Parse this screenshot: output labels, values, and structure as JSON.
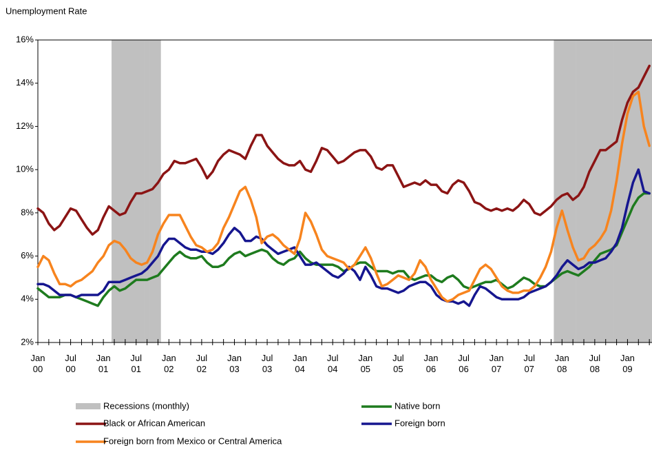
{
  "chart_data": {
    "type": "line",
    "title": "Unemployment Rate",
    "categories": [
      "Jan 00",
      null,
      null,
      null,
      null,
      null,
      "Jul 00",
      null,
      null,
      null,
      null,
      null,
      "Jan 01",
      null,
      null,
      null,
      null,
      null,
      "Jul 01",
      null,
      null,
      null,
      null,
      null,
      "Jan 02",
      null,
      null,
      null,
      null,
      null,
      "Jul 02",
      null,
      null,
      null,
      null,
      null,
      "Jan 03",
      null,
      null,
      null,
      null,
      null,
      "Jul 03",
      null,
      null,
      null,
      null,
      null,
      "Jan 04",
      null,
      null,
      null,
      null,
      null,
      "Jul 04",
      null,
      null,
      null,
      null,
      null,
      "Jan 05",
      null,
      null,
      null,
      null,
      null,
      "Jul 05",
      null,
      null,
      null,
      null,
      null,
      "Jan 06",
      null,
      null,
      null,
      null,
      null,
      "Jul 06",
      null,
      null,
      null,
      null,
      null,
      "Jan 07",
      null,
      null,
      null,
      null,
      null,
      "Jul 07",
      null,
      null,
      null,
      null,
      null,
      "Jan 08",
      null,
      null,
      null,
      null,
      null,
      "Jul 08",
      null,
      null,
      null,
      null,
      null,
      "Jan 09",
      null,
      null,
      null,
      null
    ],
    "recessions": {
      "name": "Recessions (monthly)",
      "color": "#c0c0c0",
      "values": [
        0,
        0,
        0,
        0,
        0,
        0,
        0,
        0,
        0,
        0,
        0,
        0,
        0,
        0,
        1,
        1,
        1,
        1,
        1,
        1,
        1,
        1,
        1,
        0,
        0,
        0,
        0,
        0,
        0,
        0,
        0,
        0,
        0,
        0,
        0,
        0,
        0,
        0,
        0,
        0,
        0,
        0,
        0,
        0,
        0,
        0,
        0,
        0,
        0,
        0,
        0,
        0,
        0,
        0,
        0,
        0,
        0,
        0,
        0,
        0,
        0,
        0,
        0,
        0,
        0,
        0,
        0,
        0,
        0,
        0,
        0,
        0,
        0,
        0,
        0,
        0,
        0,
        0,
        0,
        0,
        0,
        0,
        0,
        0,
        0,
        0,
        0,
        0,
        0,
        0,
        0,
        0,
        0,
        0,
        0,
        1,
        1,
        1,
        1,
        1,
        1,
        1,
        1,
        1,
        1,
        1,
        1,
        1,
        1,
        1,
        1,
        1,
        1
      ]
    },
    "series": [
      {
        "name": "Native born",
        "color": "#1e7b1e",
        "values": [
          4.5,
          4.3,
          4.1,
          4.1,
          4.1,
          4.2,
          4.2,
          4.1,
          4.0,
          3.9,
          3.8,
          3.7,
          4.1,
          4.4,
          4.6,
          4.4,
          4.5,
          4.7,
          4.9,
          4.9,
          4.9,
          5.0,
          5.1,
          5.4,
          5.7,
          6.0,
          6.2,
          6.0,
          5.9,
          5.9,
          6.0,
          5.7,
          5.5,
          5.5,
          5.6,
          5.9,
          6.1,
          6.2,
          6.0,
          6.1,
          6.2,
          6.3,
          6.2,
          5.9,
          5.7,
          5.6,
          5.8,
          5.9,
          6.2,
          5.9,
          5.7,
          5.6,
          5.6,
          5.6,
          5.6,
          5.5,
          5.3,
          5.4,
          5.6,
          5.7,
          5.7,
          5.5,
          5.3,
          5.3,
          5.3,
          5.2,
          5.3,
          5.3,
          5.0,
          4.9,
          5.0,
          5.1,
          5.1,
          4.9,
          4.8,
          5.0,
          5.1,
          4.9,
          4.6,
          4.5,
          4.6,
          4.7,
          4.8,
          4.8,
          4.9,
          4.7,
          4.5,
          4.6,
          4.8,
          5.0,
          4.9,
          4.7,
          4.6,
          4.6,
          4.8,
          5.0,
          5.2,
          5.3,
          5.2,
          5.1,
          5.3,
          5.5,
          5.8,
          6.1,
          6.2,
          6.3,
          6.5,
          7.1,
          7.7,
          8.3,
          8.7,
          8.9,
          8.9
        ]
      },
      {
        "name": "Black or African American",
        "color": "#8b1414",
        "values": [
          8.2,
          8.0,
          7.5,
          7.2,
          7.4,
          7.8,
          8.2,
          8.1,
          7.7,
          7.3,
          7.0,
          7.2,
          7.8,
          8.3,
          8.1,
          7.9,
          8.0,
          8.5,
          8.9,
          8.9,
          9.0,
          9.1,
          9.4,
          9.8,
          10.0,
          10.4,
          10.3,
          10.3,
          10.4,
          10.5,
          10.1,
          9.6,
          9.9,
          10.4,
          10.7,
          10.9,
          10.8,
          10.7,
          10.5,
          11.1,
          11.6,
          11.6,
          11.1,
          10.8,
          10.5,
          10.3,
          10.2,
          10.2,
          10.4,
          10.0,
          9.9,
          10.4,
          11.0,
          10.9,
          10.6,
          10.3,
          10.4,
          10.6,
          10.8,
          10.9,
          10.9,
          10.6,
          10.1,
          10.0,
          10.2,
          10.2,
          9.7,
          9.2,
          9.3,
          9.4,
          9.3,
          9.5,
          9.3,
          9.3,
          9.0,
          8.9,
          9.3,
          9.5,
          9.4,
          9.0,
          8.5,
          8.4,
          8.2,
          8.1,
          8.2,
          8.1,
          8.2,
          8.1,
          8.3,
          8.6,
          8.4,
          8.0,
          7.9,
          8.1,
          8.3,
          8.6,
          8.8,
          8.9,
          8.6,
          8.8,
          9.2,
          9.9,
          10.4,
          10.9,
          10.9,
          11.1,
          11.3,
          12.3,
          13.1,
          13.6,
          13.8,
          14.3,
          14.8
        ]
      },
      {
        "name": "Foreign born",
        "color": "#16168f",
        "values": [
          4.7,
          4.7,
          4.6,
          4.4,
          4.2,
          4.2,
          4.2,
          4.1,
          4.2,
          4.2,
          4.2,
          4.2,
          4.4,
          4.8,
          4.8,
          4.8,
          4.9,
          5.0,
          5.1,
          5.2,
          5.4,
          5.7,
          6.0,
          6.5,
          6.8,
          6.8,
          6.6,
          6.4,
          6.3,
          6.3,
          6.2,
          6.2,
          6.1,
          6.3,
          6.6,
          7.0,
          7.3,
          7.1,
          6.7,
          6.7,
          6.9,
          6.8,
          6.5,
          6.3,
          6.1,
          6.2,
          6.3,
          6.4,
          6.0,
          5.6,
          5.6,
          5.7,
          5.5,
          5.3,
          5.1,
          5.0,
          5.2,
          5.5,
          5.3,
          4.9,
          5.5,
          5.1,
          4.6,
          4.5,
          4.5,
          4.4,
          4.3,
          4.4,
          4.6,
          4.7,
          4.8,
          4.8,
          4.6,
          4.2,
          4.0,
          3.9,
          3.9,
          3.8,
          3.9,
          3.7,
          4.2,
          4.6,
          4.5,
          4.3,
          4.1,
          4.0,
          4.0,
          4.0,
          4.0,
          4.1,
          4.3,
          4.4,
          4.5,
          4.6,
          4.8,
          5.1,
          5.5,
          5.8,
          5.6,
          5.4,
          5.5,
          5.7,
          5.7,
          5.8,
          5.9,
          6.2,
          6.6,
          7.3,
          8.4,
          9.4,
          10.0,
          9.0,
          8.9
        ]
      },
      {
        "name": "Foreign born from Mexico or Central America",
        "color": "#f7841e",
        "values": [
          5.5,
          6.0,
          5.8,
          5.2,
          4.7,
          4.7,
          4.6,
          4.8,
          4.9,
          5.1,
          5.3,
          5.7,
          6.0,
          6.5,
          6.7,
          6.6,
          6.3,
          5.9,
          5.7,
          5.6,
          5.7,
          6.2,
          7.0,
          7.5,
          7.9,
          7.9,
          7.9,
          7.4,
          6.9,
          6.5,
          6.4,
          6.2,
          6.3,
          6.6,
          7.3,
          7.8,
          8.4,
          9.0,
          9.2,
          8.6,
          7.8,
          6.6,
          6.9,
          7.0,
          6.8,
          6.5,
          6.3,
          6.1,
          6.8,
          8.0,
          7.6,
          7.0,
          6.3,
          6.0,
          5.9,
          5.8,
          5.7,
          5.4,
          5.6,
          6.0,
          6.4,
          5.9,
          5.2,
          4.6,
          4.7,
          4.9,
          5.1,
          5.0,
          4.9,
          5.2,
          5.8,
          5.5,
          4.9,
          4.5,
          4.1,
          3.9,
          4.0,
          4.2,
          4.3,
          4.4,
          4.9,
          5.4,
          5.6,
          5.4,
          5.0,
          4.6,
          4.4,
          4.3,
          4.3,
          4.4,
          4.4,
          4.6,
          5.0,
          5.5,
          6.2,
          7.3,
          8.1,
          7.2,
          6.4,
          5.8,
          5.9,
          6.3,
          6.5,
          6.8,
          7.2,
          8.1,
          9.5,
          11.2,
          12.6,
          13.4,
          13.6,
          12.0,
          11.1
        ]
      }
    ],
    "ylim": [
      2,
      16
    ],
    "yticks": [
      {
        "value": 2,
        "label": "2%"
      },
      {
        "value": 4,
        "label": "4%"
      },
      {
        "value": 6,
        "label": "6%"
      },
      {
        "value": 8,
        "label": "8%"
      },
      {
        "value": 10,
        "label": "10%"
      },
      {
        "value": 12,
        "label": "12%"
      },
      {
        "value": 14,
        "label": "14%"
      },
      {
        "value": 16,
        "label": "16%"
      }
    ]
  }
}
